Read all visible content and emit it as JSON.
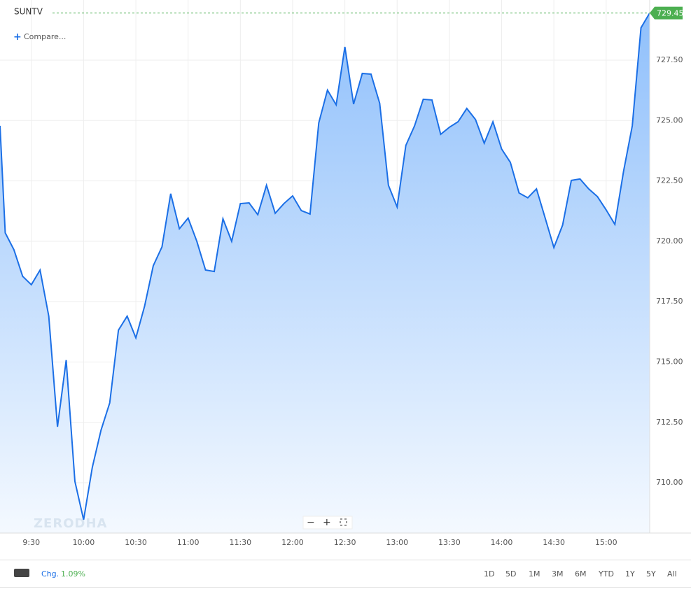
{
  "chart_data": {
    "type": "area",
    "title": "SUNTV",
    "compare_label": "Compare...",
    "watermark": "ZERODHA",
    "series": [
      {
        "name": "SUNTV",
        "color": "#1b6fe6",
        "x": [
          552,
          555,
          560,
          565,
          570,
          575,
          580,
          585,
          590,
          595,
          600,
          605,
          610,
          615,
          620,
          625,
          630,
          635,
          640,
          645,
          650,
          655,
          660,
          665,
          670,
          675,
          680,
          685,
          690,
          695,
          700,
          705,
          710,
          715,
          720,
          725,
          730,
          735,
          740,
          745,
          750,
          755,
          760,
          765,
          770,
          775,
          780,
          785,
          790,
          795,
          800,
          805,
          810,
          815,
          820,
          825,
          830,
          835,
          840,
          845,
          850,
          855,
          860,
          865,
          870,
          875,
          880,
          885,
          890,
          895,
          900,
          905,
          910,
          915,
          920,
          925
        ],
        "values": [
          724.78,
          720.35,
          719.65,
          718.55,
          718.2,
          718.81,
          716.9,
          712.32,
          715.08,
          710.06,
          708.47,
          710.64,
          712.18,
          713.31,
          716.32,
          716.9,
          716.0,
          717.31,
          718.99,
          719.77,
          721.97,
          720.52,
          720.96,
          720.0,
          718.81,
          718.75,
          720.93,
          720.0,
          721.56,
          721.59,
          721.1,
          722.32,
          721.16,
          721.56,
          721.88,
          721.27,
          721.13,
          724.9,
          726.26,
          725.65,
          728.05,
          725.68,
          726.95,
          726.92,
          725.71,
          722.32,
          721.42,
          723.97,
          724.78,
          725.88,
          725.85,
          724.43,
          724.72,
          724.95,
          725.5,
          725.04,
          724.06,
          724.95,
          723.82,
          723.27,
          722.0,
          721.8,
          722.17,
          720.96,
          719.74,
          720.67,
          722.52,
          722.58,
          722.17,
          721.85,
          721.3,
          720.7,
          722.9,
          724.78,
          728.84,
          729.45
        ]
      }
    ],
    "last_price_color": "#4caf50",
    "xlim": [
      552,
      925
    ],
    "xticks": [
      {
        "value": 570,
        "label": "9:30"
      },
      {
        "value": 600,
        "label": "10:00"
      },
      {
        "value": 630,
        "label": "10:30"
      },
      {
        "value": 660,
        "label": "11:00"
      },
      {
        "value": 690,
        "label": "11:30"
      },
      {
        "value": 720,
        "label": "12:00"
      },
      {
        "value": 750,
        "label": "12:30"
      },
      {
        "value": 780,
        "label": "13:00"
      },
      {
        "value": 810,
        "label": "13:30"
      },
      {
        "value": 840,
        "label": "14:00"
      },
      {
        "value": 870,
        "label": "14:30"
      },
      {
        "value": 900,
        "label": "15:00"
      }
    ],
    "ylim": [
      707.92,
      729.99
    ],
    "yticks": [
      {
        "value": 710,
        "label": "710.00"
      },
      {
        "value": 712.5,
        "label": "712.50"
      },
      {
        "value": 715,
        "label": "715.00"
      },
      {
        "value": 717.5,
        "label": "717.50"
      },
      {
        "value": 720,
        "label": "720.00"
      },
      {
        "value": 722.5,
        "label": "722.50"
      },
      {
        "value": 725,
        "label": "725.00"
      },
      {
        "value": 727.5,
        "label": "727.50"
      }
    ],
    "grid": true,
    "change_label": "Chg.",
    "change_value": "1.09%",
    "ranges": [
      "1D",
      "5D",
      "1M",
      "3M",
      "6M",
      "YTD",
      "1Y",
      "5Y",
      "All"
    ]
  }
}
